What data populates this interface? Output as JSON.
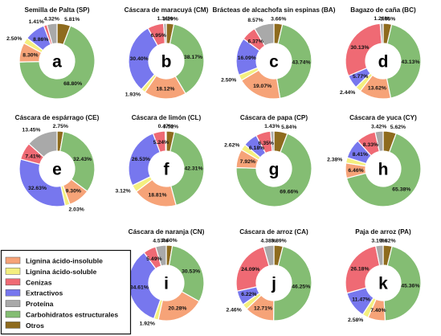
{
  "colors": {
    "Lignina ácido-insoluble": "#f6a378",
    "Lignina ácido-soluble": "#f4ef7f",
    "Cenizas": "#ef6a74",
    "Extractivos": "#7777ee",
    "Proteína": "#a9a9a9",
    "Carbohidratos estructurales": "#84bd73",
    "Otros": "#8e6b1e"
  },
  "chart_data": {
    "type": "pie",
    "legend": {
      "position": "bottom-left",
      "entries": [
        "Lignina ácido-insoluble",
        "Lignina ácido-soluble",
        "Cenizas",
        "Extractivos",
        "Proteína",
        "Carbohidratos estructurales",
        "Otros"
      ]
    },
    "charts": [
      {
        "id": "a",
        "title": "Semilla de Palta (SP)",
        "slices": [
          {
            "category": "Otros",
            "value": 5.81
          },
          {
            "category": "Carbohidratos estructurales",
            "value": 68.8
          },
          {
            "category": "Lignina ácido-insoluble",
            "value": 8.3
          },
          {
            "category": "Lignina ácido-soluble",
            "value": 2.5
          },
          {
            "category": "Extractivos",
            "value": 8.86
          },
          {
            "category": "Cenizas",
            "value": 1.41
          },
          {
            "category": "Proteína",
            "value": 4.32
          }
        ]
      },
      {
        "id": "b",
        "title": "Cáscara de maracuyá (CM)",
        "slices": [
          {
            "category": "Otros",
            "value": 3.29
          },
          {
            "category": "Carbohidratos estructurales",
            "value": 38.17
          },
          {
            "category": "Lignina ácido-insoluble",
            "value": 18.12
          },
          {
            "category": "Lignina ácido-soluble",
            "value": 1.93
          },
          {
            "category": "Extractivos",
            "value": 30.4
          },
          {
            "category": "Cenizas",
            "value": 6.95
          },
          {
            "category": "Proteína",
            "value": 1.14
          }
        ]
      },
      {
        "id": "c",
        "title": "Brácteas de alcachofa sin espinas (BA)",
        "slices": [
          {
            "category": "Otros",
            "value": 3.66
          },
          {
            "category": "Carbohidratos estructurales",
            "value": 43.74
          },
          {
            "category": "Lignina ácido-insoluble",
            "value": 19.07
          },
          {
            "category": "Lignina ácido-soluble",
            "value": 2.5
          },
          {
            "category": "Extractivos",
            "value": 16.09
          },
          {
            "category": "Cenizas",
            "value": 6.37
          },
          {
            "category": "Proteína",
            "value": 8.57
          }
        ]
      },
      {
        "id": "d",
        "title": "Bagazo de caña (BC)",
        "slices": [
          {
            "category": "Otros",
            "value": 3.65
          },
          {
            "category": "Carbohidratos estructurales",
            "value": 43.13
          },
          {
            "category": "Lignina ácido-insoluble",
            "value": 13.62
          },
          {
            "category": "Lignina ácido-soluble",
            "value": 2.44
          },
          {
            "category": "Extractivos",
            "value": 5.77
          },
          {
            "category": "Cenizas",
            "value": 30.13
          },
          {
            "category": "Proteína",
            "value": 1.26
          }
        ]
      },
      {
        "id": "e",
        "title": "Cáscara de espárrago (CE)",
        "slices": [
          {
            "category": "Otros",
            "value": 2.75
          },
          {
            "category": "Carbohidratos estructurales",
            "value": 32.43
          },
          {
            "category": "Lignina ácido-insoluble",
            "value": 9.3
          },
          {
            "category": "Lignina ácido-soluble",
            "value": 2.03
          },
          {
            "category": "Extractivos",
            "value": 32.63
          },
          {
            "category": "Cenizas",
            "value": 7.41
          },
          {
            "category": "Proteína",
            "value": 13.45
          }
        ]
      },
      {
        "id": "f",
        "title": "Cáscara de limón (CL)",
        "slices": [
          {
            "category": "Otros",
            "value": 3.52
          },
          {
            "category": "Carbohidratos estructurales",
            "value": 42.31
          },
          {
            "category": "Lignina ácido-insoluble",
            "value": 18.81
          },
          {
            "category": "Lignina ácido-soluble",
            "value": 3.12
          },
          {
            "category": "Extractivos",
            "value": 26.53
          },
          {
            "category": "Cenizas",
            "value": 5.24
          },
          {
            "category": "Proteína",
            "value": 0.47
          }
        ]
      },
      {
        "id": "g",
        "title": "Cáscara de papa (CP)",
        "slices": [
          {
            "category": "Otros",
            "value": 5.84
          },
          {
            "category": "Carbohidratos estructurales",
            "value": 69.66
          },
          {
            "category": "Lignina ácido-insoluble",
            "value": 7.92
          },
          {
            "category": "Lignina ácido-soluble",
            "value": 2.62
          },
          {
            "category": "Extractivos",
            "value": 6.18
          },
          {
            "category": "Cenizas",
            "value": 6.35
          },
          {
            "category": "Proteína",
            "value": 1.43
          }
        ]
      },
      {
        "id": "h",
        "title": "Cáscara de yuca (CY)",
        "slices": [
          {
            "category": "Otros",
            "value": 5.62
          },
          {
            "category": "Carbohidratos estructurales",
            "value": 65.38
          },
          {
            "category": "Lignina ácido-insoluble",
            "value": 6.46
          },
          {
            "category": "Lignina ácido-soluble",
            "value": 2.38
          },
          {
            "category": "Extractivos",
            "value": 8.41
          },
          {
            "category": "Cenizas",
            "value": 8.33
          },
          {
            "category": "Proteína",
            "value": 3.42
          }
        ]
      },
      {
        "id": "i",
        "title": "Cáscara de naranja (CN)",
        "slices": [
          {
            "category": "Otros",
            "value": 2.6
          },
          {
            "category": "Carbohidratos estructurales",
            "value": 30.53
          },
          {
            "category": "Lignina ácido-insoluble",
            "value": 20.28
          },
          {
            "category": "Lignina ácido-soluble",
            "value": 1.92
          },
          {
            "category": "Extractivos",
            "value": 34.61
          },
          {
            "category": "Cenizas",
            "value": 5.49
          },
          {
            "category": "Proteína",
            "value": 4.57
          }
        ]
      },
      {
        "id": "j",
        "title": "Cáscara de arroz (CA)",
        "slices": [
          {
            "category": "Otros",
            "value": 3.89
          },
          {
            "category": "Carbohidratos estructurales",
            "value": 46.25
          },
          {
            "category": "Lignina ácido-insoluble",
            "value": 12.71
          },
          {
            "category": "Lignina ácido-soluble",
            "value": 2.46
          },
          {
            "category": "Extractivos",
            "value": 6.22
          },
          {
            "category": "Cenizas",
            "value": 24.09
          },
          {
            "category": "Proteína",
            "value": 4.38
          }
        ]
      },
      {
        "id": "k",
        "title": "Paja de arroz (PA)",
        "slices": [
          {
            "category": "Otros",
            "value": 3.82
          },
          {
            "category": "Carbohidratos estructurales",
            "value": 45.36
          },
          {
            "category": "Lignina ácido-insoluble",
            "value": 7.4
          },
          {
            "category": "Lignina ácido-soluble",
            "value": 2.58
          },
          {
            "category": "Extractivos",
            "value": 11.47
          },
          {
            "category": "Cenizas",
            "value": 26.18
          },
          {
            "category": "Proteína",
            "value": 3.19
          }
        ]
      }
    ]
  }
}
